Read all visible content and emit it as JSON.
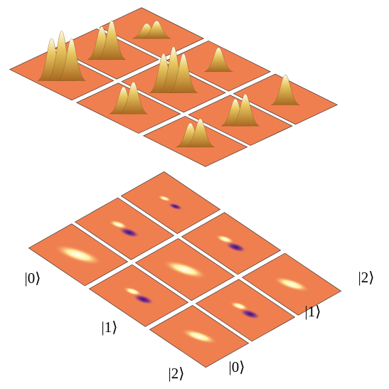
{
  "row_labels": [
    "|0⟩",
    "|1⟩",
    "|2⟩"
  ],
  "column_labels": [
    "|0⟩",
    "|1⟩",
    "|2⟩"
  ]
}
